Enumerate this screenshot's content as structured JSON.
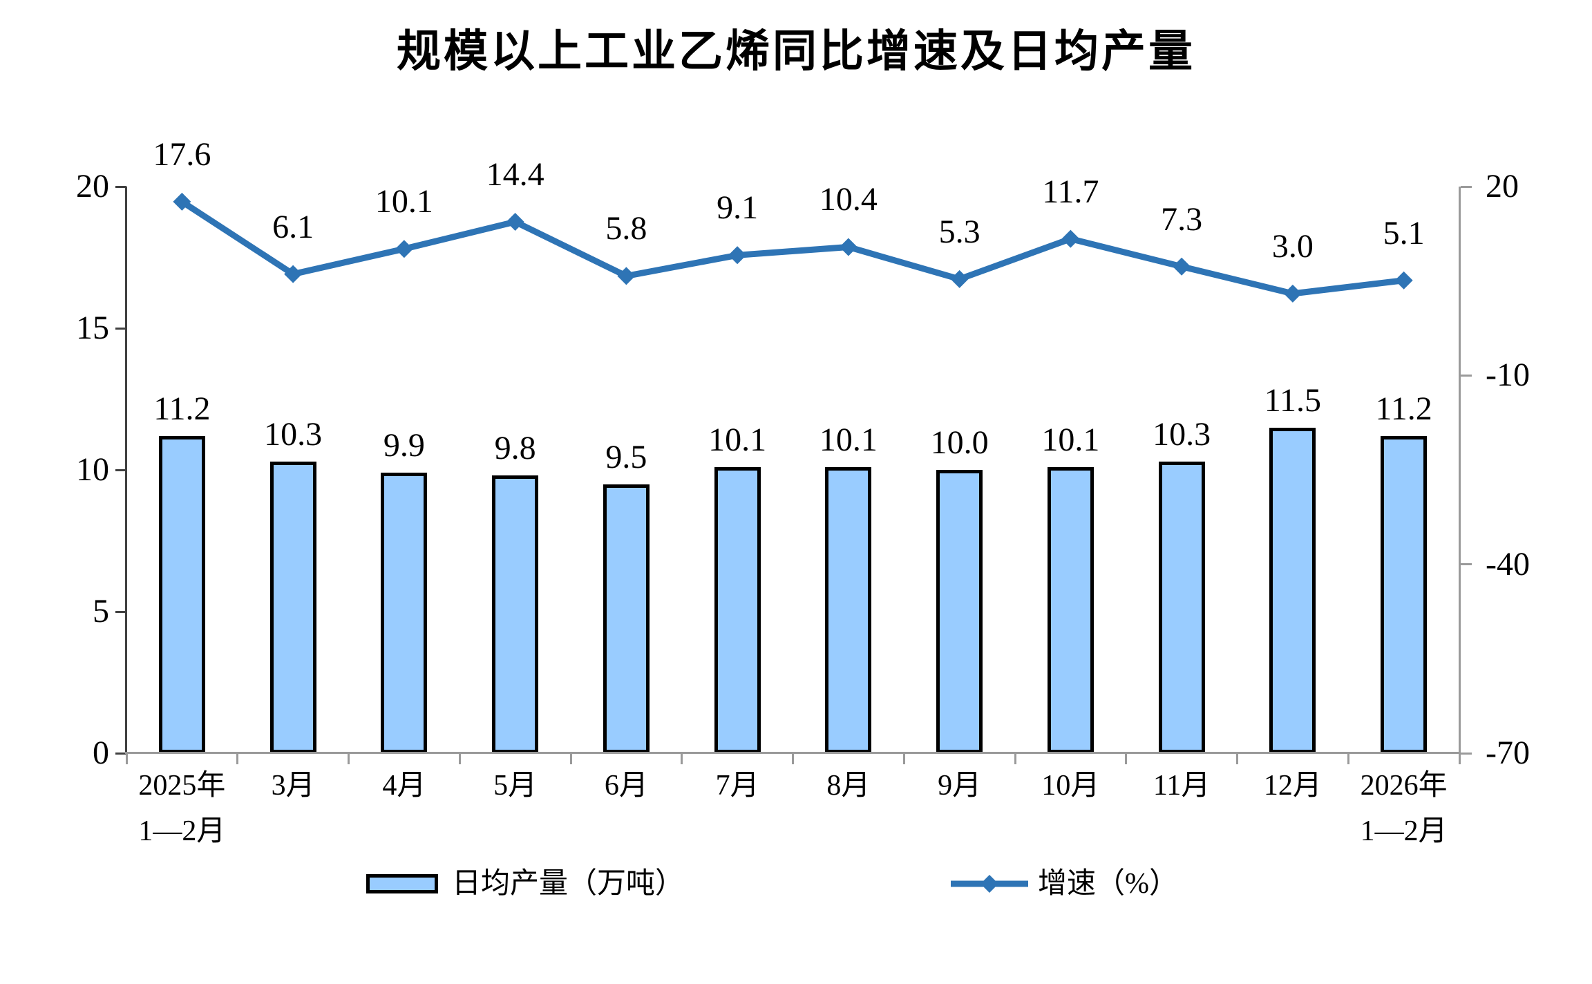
{
  "title": "规模以上工业乙烯同比增速及日均产量",
  "legend": {
    "bar_label": "日均产量（万吨）",
    "line_label": "增速（%）"
  },
  "colors": {
    "bar_fill": "#99CCFF",
    "bar_border": "#000000",
    "line": "#2E74B5",
    "axis_left": "#404040",
    "axis_other": "#9a9a9a",
    "text": "#000000"
  },
  "chart_data": {
    "type": "combo",
    "title": "规模以上工业乙烯同比增速及日均产量",
    "categories": [
      "2025年|1—2月",
      "3月",
      "4月",
      "5月",
      "6月",
      "7月",
      "8月",
      "9月",
      "10月",
      "11月",
      "12月",
      "2026年|1—2月"
    ],
    "series": [
      {
        "name": "日均产量（万吨）",
        "type": "bar",
        "axis": "left",
        "values": [
          11.2,
          10.3,
          9.9,
          9.8,
          9.5,
          10.1,
          10.1,
          10.0,
          10.1,
          10.3,
          11.5,
          11.2
        ],
        "labels": [
          "11.2",
          "10.3",
          "9.9",
          "9.8",
          "9.5",
          "10.1",
          "10.1",
          "10.0",
          "10.1",
          "10.3",
          "11.5",
          "11.2"
        ],
        "fill": "#99CCFF",
        "border": "#000000"
      },
      {
        "name": "增速（%）",
        "type": "line",
        "axis": "right",
        "values": [
          17.6,
          6.1,
          10.1,
          14.4,
          5.8,
          9.1,
          10.4,
          5.3,
          11.7,
          7.3,
          3.0,
          5.1
        ],
        "labels": [
          "17.6",
          "6.1",
          "10.1",
          "14.4",
          "5.8",
          "9.1",
          "10.4",
          "5.3",
          "11.7",
          "7.3",
          "3.0",
          "5.1"
        ],
        "color": "#2E74B5"
      }
    ],
    "left_axis": {
      "min": 0,
      "max": 20,
      "ticks": [
        20,
        15,
        10,
        5,
        0
      ],
      "tick_labels": [
        "20",
        "15",
        "10",
        "5",
        "0"
      ]
    },
    "right_axis": {
      "min": -70,
      "max": 20,
      "ticks": [
        20,
        -10,
        -40,
        -70
      ],
      "tick_labels": [
        "20",
        "-10",
        "-40",
        "-70"
      ]
    },
    "grid": false,
    "legend_position": "bottom"
  }
}
